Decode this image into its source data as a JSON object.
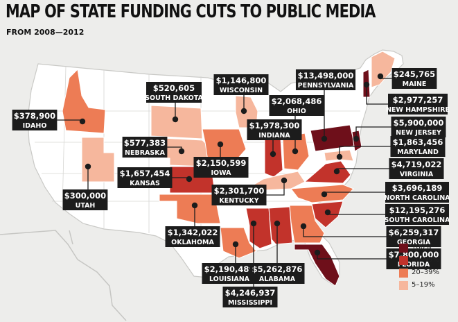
{
  "title": "MAP OF STATE FUNDING CUTS TO PUBLIC MEDIA",
  "subtitle": "FROM 2008—2012",
  "colors": {
    "background": "#ededeb",
    "land": "#ffffff",
    "border": "#c9c9c6",
    "label_box": "#1c1c1c",
    "leader": "#1c1c1c",
    "tier_100": "#6e0f1a",
    "tier_40_99": "#c2332b",
    "tier_20_39": "#ed7c55",
    "tier_5_19": "#f6b79d"
  },
  "legend": [
    {
      "label": "100%",
      "color": "#6e0f1a"
    },
    {
      "label": "40–99%",
      "color": "#c2332b"
    },
    {
      "label": "20–39%",
      "color": "#ed7c55"
    },
    {
      "label": "5–19%",
      "color": "#f6b79d"
    }
  ],
  "states": [
    {
      "name": "MAINE",
      "amount": "$245,765",
      "tier": "5_19"
    },
    {
      "name": "NEW HAMPSHIRE",
      "amount": "$2,977,257",
      "tier": "100"
    },
    {
      "name": "NEW JERSEY",
      "amount": "$5,900,000",
      "tier": "100"
    },
    {
      "name": "PENNSYLVANIA",
      "amount": "$13,498,000",
      "tier": "100"
    },
    {
      "name": "MARYLAND",
      "amount": "$1,863,456",
      "tier": "5_19"
    },
    {
      "name": "VIRGINIA",
      "amount": "$4,719,022",
      "tier": "40_99"
    },
    {
      "name": "NORTH CAROLINA",
      "amount": "$3,696,189",
      "tier": "20_39"
    },
    {
      "name": "SOUTH CAROLINA",
      "amount": "$12,195,276",
      "tier": "40_99"
    },
    {
      "name": "GEORGIA",
      "amount": "$6,259,317",
      "tier": "20_39"
    },
    {
      "name": "FLORIDA",
      "amount": "$7,800,000",
      "tier": "100"
    },
    {
      "name": "OHIO",
      "amount": "$2,068,486",
      "tier": "20_39"
    },
    {
      "name": "WISCONSIN",
      "amount": "$1,146,800",
      "tier": "5_19"
    },
    {
      "name": "INDIANA",
      "amount": "$1,978,300",
      "tier": "40_99"
    },
    {
      "name": "KENTUCKY",
      "amount": "$2,301,700",
      "tier": "5_19"
    },
    {
      "name": "SOUTH DAKOTA",
      "amount": "$520,605",
      "tier": "5_19"
    },
    {
      "name": "NEBRASKA",
      "amount": "$577,383",
      "tier": "5_19"
    },
    {
      "name": "IOWA",
      "amount": "$2,150,599",
      "tier": "20_39"
    },
    {
      "name": "KANSAS",
      "amount": "$1,657,454",
      "tier": "40_99"
    },
    {
      "name": "OKLAHOMA",
      "amount": "$1,342,022",
      "tier": "20_39"
    },
    {
      "name": "IDAHO",
      "amount": "$378,900",
      "tier": "20_39"
    },
    {
      "name": "UTAH",
      "amount": "$300,000",
      "tier": "5_19"
    },
    {
      "name": "LOUISIANA",
      "amount": "$2,190,489",
      "tier": "20_39"
    },
    {
      "name": "ALABAMA",
      "amount": "$5,262,876",
      "tier": "40_99"
    },
    {
      "name": "MISSISSIPPI",
      "amount": "$4,246,937",
      "tier": "40_99"
    }
  ]
}
